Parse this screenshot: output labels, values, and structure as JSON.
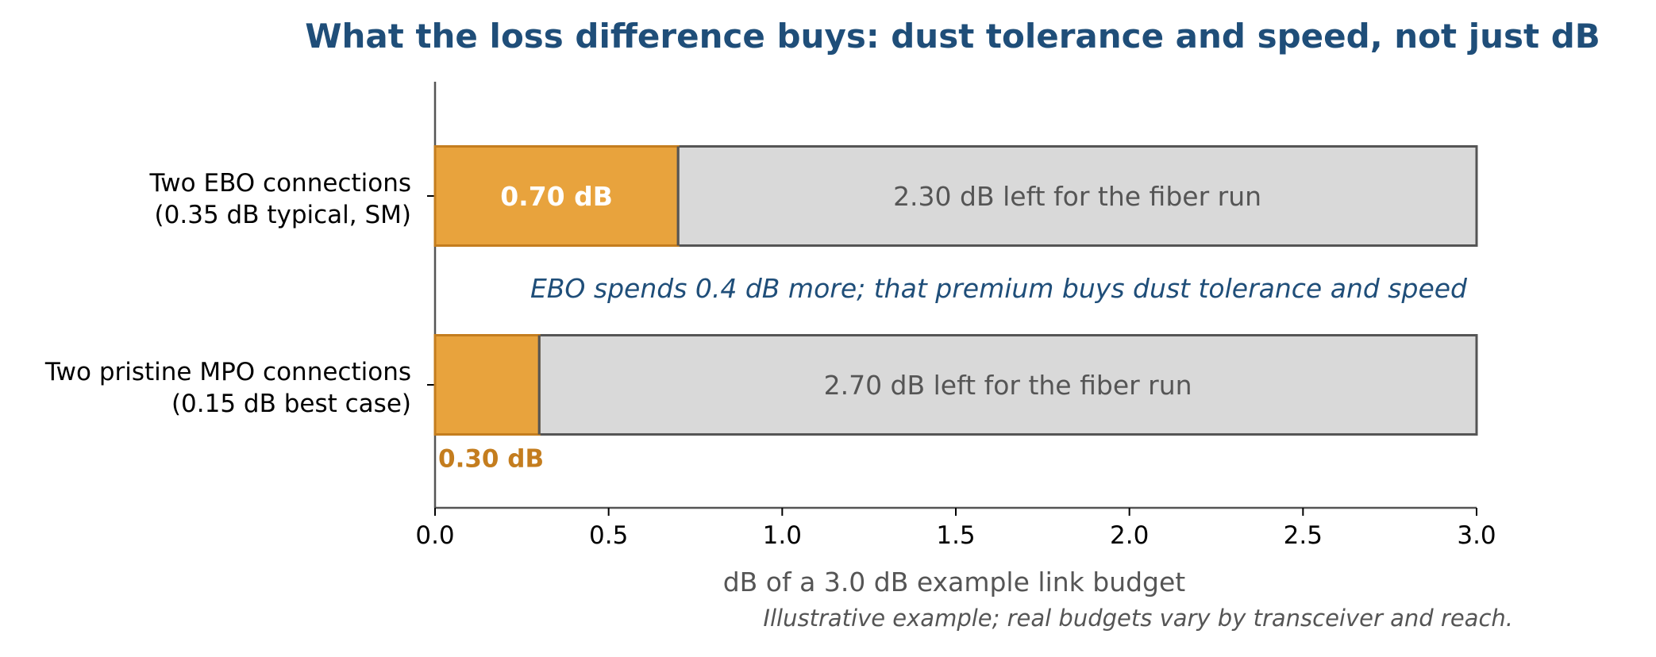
{
  "chart_data": {
    "type": "bar",
    "orientation": "horizontal",
    "stacked": true,
    "title": "What the loss difference buys: dust tolerance and speed, not just dB",
    "xlabel": "dB of a 3.0 dB example link budget",
    "ylabel": "",
    "xlim": [
      0,
      3.0
    ],
    "xticks": [
      "0.0",
      "0.5",
      "1.0",
      "1.5",
      "2.0",
      "2.5",
      "3.0"
    ],
    "grid": false,
    "categories": [
      [
        "Two EBO connections",
        "(0.35 dB typical, SM)"
      ],
      [
        "Two pristine MPO connections",
        "(0.15 dB best case)"
      ]
    ],
    "series": [
      {
        "values": [
          0.7,
          0.3
        ],
        "labels": [
          "0.70 dB",
          "0.30 dB"
        ],
        "color": "#E8A33D"
      },
      {
        "values": [
          2.3,
          2.7
        ],
        "labels": [
          "2.30 dB left for the fiber run",
          "2.70 dB left for the fiber run"
        ],
        "color": "#D9D9D9"
      }
    ],
    "annotation": "EBO spends 0.4 dB more; that premium buys dust tolerance and speed",
    "footnote": "Illustrative example; real budgets vary by transceiver and reach."
  },
  "colors": {
    "title": "#1F4E79",
    "annotation": "#1F4E79",
    "loss_fill": "#E8A33D",
    "loss_edge": "#C47D1E",
    "loss_label_outside": "#C47D1E",
    "remaining_fill": "#D9D9D9",
    "remaining_edge": "#555555",
    "remaining_text": "#555555",
    "axis": "#555555",
    "axis_title": "#555555"
  }
}
